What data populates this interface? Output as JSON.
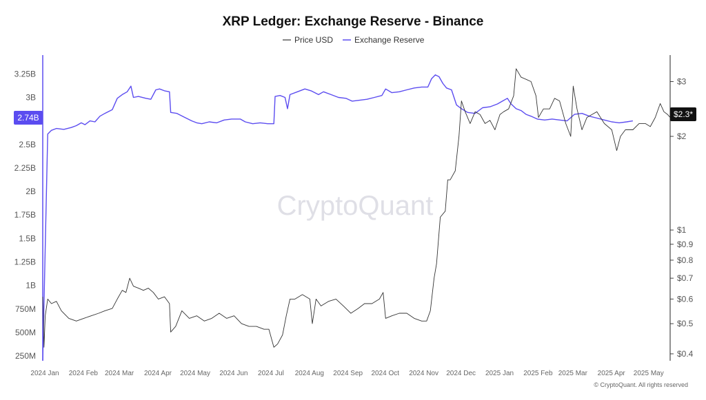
{
  "chart_data": {
    "type": "line",
    "title": "XRP Ledger: Exchange Reserve - Binance",
    "watermark": "CryptoQuant",
    "copyright": "© CryptoQuant. All rights reserved",
    "legend": {
      "placement": "top-center",
      "items": [
        {
          "name": "Price USD",
          "color": "#333333"
        },
        {
          "name": "Exchange Reserve",
          "color": "#5b4cf0"
        }
      ]
    },
    "x_axis": {
      "ticks": [
        "2024 Jan",
        "2024 Feb",
        "2024 Mar",
        "2024 Apr",
        "2024 May",
        "2024 Jun",
        "2024 Jul",
        "2024 Aug",
        "2024 Sep",
        "2024 Oct",
        "2024 Nov",
        "2024 Dec",
        "2025 Jan",
        "2025 Feb",
        "2025 Mar",
        "2025 Apr",
        "2025 May"
      ],
      "range": [
        "2024-01-01",
        "2025-05-20"
      ]
    },
    "left_axis": {
      "series": "Exchange Reserve",
      "ticks": [
        {
          "value": 3250000000,
          "label": "3.25B"
        },
        {
          "value": 3000000000,
          "label": "3B"
        },
        {
          "value": 2500000000,
          "label": "2.5B"
        },
        {
          "value": 2250000000,
          "label": "2.25B"
        },
        {
          "value": 2000000000,
          "label": "2B"
        },
        {
          "value": 1750000000,
          "label": "1.75B"
        },
        {
          "value": 1500000000,
          "label": "1.5B"
        },
        {
          "value": 1250000000,
          "label": "1.25B"
        },
        {
          "value": 1000000000,
          "label": "1B"
        },
        {
          "value": 750000000,
          "label": "750M"
        },
        {
          "value": 500000000,
          "label": "500M"
        },
        {
          "value": 250000000,
          "label": "250M"
        }
      ],
      "range": [
        200000000,
        3450000000
      ],
      "current_label": "2.74B",
      "current_color": "#5b4cf0",
      "axis_color": "#5b4cf0"
    },
    "right_axis": {
      "series": "Price USD",
      "scale": "log",
      "ticks": [
        {
          "value": 3,
          "label": "$3"
        },
        {
          "value": 2,
          "label": "$2"
        },
        {
          "value": 1,
          "label": "$1"
        },
        {
          "value": 0.9,
          "label": "$0.9"
        },
        {
          "value": 0.8,
          "label": "$0.8"
        },
        {
          "value": 0.7,
          "label": "$0.7"
        },
        {
          "value": 0.6,
          "label": "$0.6"
        },
        {
          "value": 0.5,
          "label": "$0.5"
        },
        {
          "value": 0.4,
          "label": "$0.4"
        }
      ],
      "range": [
        0.38,
        3.65
      ],
      "current_label": "$2.3*",
      "current_color": "#111111"
    },
    "series": [
      {
        "name": "Exchange Reserve",
        "color": "#5b4cf0",
        "axis": "left",
        "points": [
          [
            "2024-01-01",
            200000000
          ],
          [
            "2024-01-05",
            2610000000
          ],
          [
            "2024-01-08",
            2650000000
          ],
          [
            "2024-01-12",
            2670000000
          ],
          [
            "2024-01-18",
            2660000000
          ],
          [
            "2024-01-24",
            2680000000
          ],
          [
            "2024-01-28",
            2700000000
          ],
          [
            "2024-02-01",
            2730000000
          ],
          [
            "2024-02-04",
            2710000000
          ],
          [
            "2024-02-08",
            2750000000
          ],
          [
            "2024-02-12",
            2740000000
          ],
          [
            "2024-02-16",
            2800000000
          ],
          [
            "2024-02-20",
            2830000000
          ],
          [
            "2024-02-26",
            2870000000
          ],
          [
            "2024-03-01",
            2990000000
          ],
          [
            "2024-03-05",
            3030000000
          ],
          [
            "2024-03-09",
            3060000000
          ],
          [
            "2024-03-12",
            3120000000
          ],
          [
            "2024-03-14",
            3000000000
          ],
          [
            "2024-03-18",
            3010000000
          ],
          [
            "2024-03-24",
            2990000000
          ],
          [
            "2024-03-28",
            2980000000
          ],
          [
            "2024-04-01",
            3080000000
          ],
          [
            "2024-04-04",
            3090000000
          ],
          [
            "2024-04-08",
            3070000000
          ],
          [
            "2024-04-12",
            3060000000
          ],
          [
            "2024-04-13",
            2840000000
          ],
          [
            "2024-04-18",
            2830000000
          ],
          [
            "2024-04-24",
            2790000000
          ],
          [
            "2024-04-30",
            2750000000
          ],
          [
            "2024-05-04",
            2730000000
          ],
          [
            "2024-05-08",
            2720000000
          ],
          [
            "2024-05-14",
            2740000000
          ],
          [
            "2024-05-20",
            2730000000
          ],
          [
            "2024-05-26",
            2760000000
          ],
          [
            "2024-06-01",
            2770000000
          ],
          [
            "2024-06-08",
            2770000000
          ],
          [
            "2024-06-12",
            2740000000
          ],
          [
            "2024-06-18",
            2720000000
          ],
          [
            "2024-06-24",
            2730000000
          ],
          [
            "2024-06-30",
            2720000000
          ],
          [
            "2024-07-05",
            2720000000
          ],
          [
            "2024-07-06",
            3010000000
          ],
          [
            "2024-07-10",
            3020000000
          ],
          [
            "2024-07-14",
            3000000000
          ],
          [
            "2024-07-16",
            2880000000
          ],
          [
            "2024-07-18",
            3030000000
          ],
          [
            "2024-07-24",
            3060000000
          ],
          [
            "2024-07-30",
            3090000000
          ],
          [
            "2024-08-04",
            3070000000
          ],
          [
            "2024-08-10",
            3030000000
          ],
          [
            "2024-08-14",
            3060000000
          ],
          [
            "2024-08-20",
            3030000000
          ],
          [
            "2024-08-26",
            3000000000
          ],
          [
            "2024-09-01",
            2990000000
          ],
          [
            "2024-09-06",
            2960000000
          ],
          [
            "2024-09-12",
            2970000000
          ],
          [
            "2024-09-18",
            2980000000
          ],
          [
            "2024-09-24",
            3000000000
          ],
          [
            "2024-09-30",
            3020000000
          ],
          [
            "2024-10-03",
            3090000000
          ],
          [
            "2024-10-08",
            3050000000
          ],
          [
            "2024-10-14",
            3060000000
          ],
          [
            "2024-10-20",
            3080000000
          ],
          [
            "2024-10-26",
            3100000000
          ],
          [
            "2024-11-01",
            3110000000
          ],
          [
            "2024-11-06",
            3110000000
          ],
          [
            "2024-11-09",
            3200000000
          ],
          [
            "2024-11-12",
            3240000000
          ],
          [
            "2024-11-15",
            3220000000
          ],
          [
            "2024-11-18",
            3150000000
          ],
          [
            "2024-11-21",
            3100000000
          ],
          [
            "2024-11-25",
            3080000000
          ],
          [
            "2024-11-29",
            2920000000
          ],
          [
            "2024-12-03",
            2880000000
          ],
          [
            "2024-12-08",
            2840000000
          ],
          [
            "2024-12-14",
            2830000000
          ],
          [
            "2024-12-20",
            2890000000
          ],
          [
            "2024-12-26",
            2900000000
          ],
          [
            "2025-01-01",
            2930000000
          ],
          [
            "2025-01-05",
            2960000000
          ],
          [
            "2025-01-09",
            2990000000
          ],
          [
            "2025-01-12",
            2930000000
          ],
          [
            "2025-01-16",
            2880000000
          ],
          [
            "2025-01-20",
            2860000000
          ],
          [
            "2025-01-24",
            2820000000
          ],
          [
            "2025-01-28",
            2800000000
          ],
          [
            "2025-02-02",
            2770000000
          ],
          [
            "2025-02-08",
            2760000000
          ],
          [
            "2025-02-14",
            2770000000
          ],
          [
            "2025-02-20",
            2760000000
          ],
          [
            "2025-02-26",
            2750000000
          ],
          [
            "2025-03-04",
            2820000000
          ],
          [
            "2025-03-10",
            2830000000
          ],
          [
            "2025-03-16",
            2800000000
          ],
          [
            "2025-03-22",
            2780000000
          ],
          [
            "2025-03-28",
            2760000000
          ],
          [
            "2025-04-03",
            2740000000
          ],
          [
            "2025-04-09",
            2730000000
          ],
          [
            "2025-04-15",
            2740000000
          ],
          [
            "2025-04-20",
            2750000000
          ]
        ]
      },
      {
        "name": "Price USD",
        "color": "#333333",
        "axis": "right",
        "points": [
          [
            "2024-01-01",
            0.61
          ],
          [
            "2024-01-02",
            0.42
          ],
          [
            "2024-01-03",
            0.53
          ],
          [
            "2024-01-05",
            0.6
          ],
          [
            "2024-01-08",
            0.58
          ],
          [
            "2024-01-12",
            0.59
          ],
          [
            "2024-01-16",
            0.55
          ],
          [
            "2024-01-22",
            0.52
          ],
          [
            "2024-01-28",
            0.51
          ],
          [
            "2024-02-03",
            0.52
          ],
          [
            "2024-02-09",
            0.53
          ],
          [
            "2024-02-15",
            0.54
          ],
          [
            "2024-02-20",
            0.55
          ],
          [
            "2024-02-26",
            0.56
          ],
          [
            "2024-03-01",
            0.6
          ],
          [
            "2024-03-05",
            0.64
          ],
          [
            "2024-03-08",
            0.63
          ],
          [
            "2024-03-11",
            0.7
          ],
          [
            "2024-03-14",
            0.66
          ],
          [
            "2024-03-18",
            0.65
          ],
          [
            "2024-03-22",
            0.64
          ],
          [
            "2024-03-26",
            0.65
          ],
          [
            "2024-03-30",
            0.63
          ],
          [
            "2024-04-03",
            0.6
          ],
          [
            "2024-04-08",
            0.61
          ],
          [
            "2024-04-12",
            0.58
          ],
          [
            "2024-04-13",
            0.47
          ],
          [
            "2024-04-17",
            0.49
          ],
          [
            "2024-04-22",
            0.55
          ],
          [
            "2024-04-28",
            0.52
          ],
          [
            "2024-05-04",
            0.53
          ],
          [
            "2024-05-10",
            0.51
          ],
          [
            "2024-05-16",
            0.52
          ],
          [
            "2024-05-22",
            0.54
          ],
          [
            "2024-05-28",
            0.52
          ],
          [
            "2024-06-03",
            0.53
          ],
          [
            "2024-06-09",
            0.5
          ],
          [
            "2024-06-15",
            0.49
          ],
          [
            "2024-06-21",
            0.49
          ],
          [
            "2024-06-27",
            0.48
          ],
          [
            "2024-07-01",
            0.48
          ],
          [
            "2024-07-05",
            0.42
          ],
          [
            "2024-07-08",
            0.43
          ],
          [
            "2024-07-12",
            0.46
          ],
          [
            "2024-07-15",
            0.53
          ],
          [
            "2024-07-18",
            0.6
          ],
          [
            "2024-07-22",
            0.6
          ],
          [
            "2024-07-28",
            0.62
          ],
          [
            "2024-08-03",
            0.6
          ],
          [
            "2024-08-05",
            0.5
          ],
          [
            "2024-08-08",
            0.6
          ],
          [
            "2024-08-12",
            0.57
          ],
          [
            "2024-08-18",
            0.59
          ],
          [
            "2024-08-24",
            0.6
          ],
          [
            "2024-08-30",
            0.57
          ],
          [
            "2024-09-05",
            0.54
          ],
          [
            "2024-09-11",
            0.56
          ],
          [
            "2024-09-16",
            0.58
          ],
          [
            "2024-09-22",
            0.58
          ],
          [
            "2024-09-28",
            0.6
          ],
          [
            "2024-10-01",
            0.63
          ],
          [
            "2024-10-03",
            0.52
          ],
          [
            "2024-10-08",
            0.53
          ],
          [
            "2024-10-14",
            0.54
          ],
          [
            "2024-10-20",
            0.54
          ],
          [
            "2024-10-26",
            0.52
          ],
          [
            "2024-11-01",
            0.51
          ],
          [
            "2024-11-05",
            0.51
          ],
          [
            "2024-11-08",
            0.55
          ],
          [
            "2024-11-11",
            0.7
          ],
          [
            "2024-11-13",
            0.78
          ],
          [
            "2024-11-16",
            1.1
          ],
          [
            "2024-11-20",
            1.15
          ],
          [
            "2024-11-22",
            1.45
          ],
          [
            "2024-11-24",
            1.45
          ],
          [
            "2024-11-28",
            1.55
          ],
          [
            "2024-12-01",
            2.0
          ],
          [
            "2024-12-03",
            2.6
          ],
          [
            "2024-12-06",
            2.4
          ],
          [
            "2024-12-10",
            2.2
          ],
          [
            "2024-12-14",
            2.4
          ],
          [
            "2024-12-18",
            2.35
          ],
          [
            "2024-12-22",
            2.2
          ],
          [
            "2024-12-26",
            2.25
          ],
          [
            "2024-12-30",
            2.1
          ],
          [
            "2025-01-03",
            2.35
          ],
          [
            "2025-01-06",
            2.4
          ],
          [
            "2025-01-10",
            2.45
          ],
          [
            "2025-01-14",
            2.7
          ],
          [
            "2025-01-16",
            3.3
          ],
          [
            "2025-01-20",
            3.1
          ],
          [
            "2025-01-24",
            3.05
          ],
          [
            "2025-01-28",
            3.0
          ],
          [
            "2025-02-01",
            2.7
          ],
          [
            "2025-02-03",
            2.3
          ],
          [
            "2025-02-07",
            2.45
          ],
          [
            "2025-02-12",
            2.45
          ],
          [
            "2025-02-16",
            2.65
          ],
          [
            "2025-02-20",
            2.6
          ],
          [
            "2025-02-25",
            2.2
          ],
          [
            "2025-03-01",
            2.0
          ],
          [
            "2025-03-03",
            2.9
          ],
          [
            "2025-03-06",
            2.45
          ],
          [
            "2025-03-10",
            2.1
          ],
          [
            "2025-03-14",
            2.3
          ],
          [
            "2025-03-18",
            2.35
          ],
          [
            "2025-03-22",
            2.4
          ],
          [
            "2025-03-28",
            2.2
          ],
          [
            "2025-04-03",
            2.1
          ],
          [
            "2025-04-07",
            1.8
          ],
          [
            "2025-04-10",
            2.0
          ],
          [
            "2025-04-14",
            2.1
          ],
          [
            "2025-04-20",
            2.1
          ],
          [
            "2025-04-25",
            2.2
          ],
          [
            "2025-04-30",
            2.2
          ],
          [
            "2025-05-04",
            2.15
          ],
          [
            "2025-05-08",
            2.3
          ],
          [
            "2025-05-12",
            2.55
          ],
          [
            "2025-05-15",
            2.4
          ],
          [
            "2025-05-18",
            2.35
          ],
          [
            "2025-05-20",
            2.3
          ]
        ]
      }
    ]
  }
}
